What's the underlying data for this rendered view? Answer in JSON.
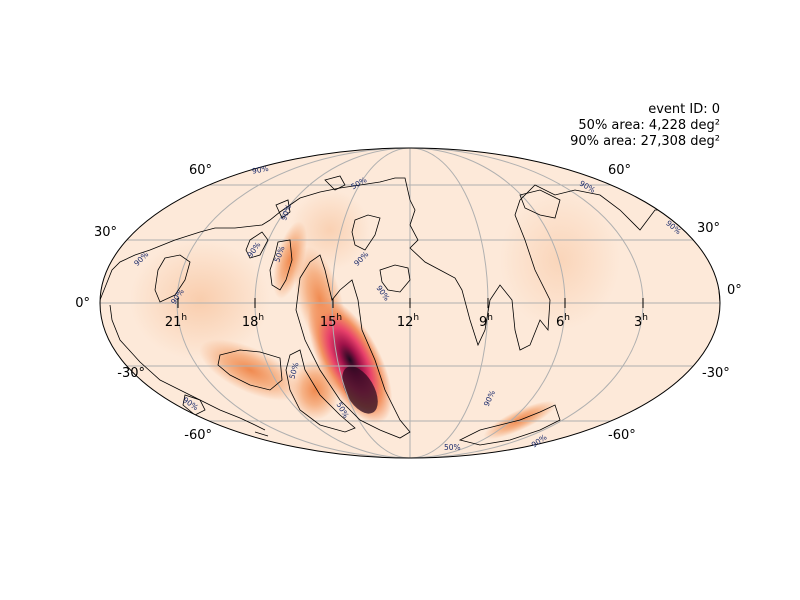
{
  "info": {
    "event_id": "event ID: 0",
    "area50": "50% area: 4,228 deg²",
    "area90": "90% area: 27,308 deg²"
  },
  "projection": "Mollweide (astro, RA increasing to the left)",
  "lat_labels": [
    {
      "name": "lat-label-60-left",
      "text": "60°"
    },
    {
      "name": "lat-label-60-right",
      "text": "60°"
    },
    {
      "name": "lat-label-30-left",
      "text": "30°"
    },
    {
      "name": "lat-label-30-right",
      "text": "30°"
    },
    {
      "name": "lat-label-0-left",
      "text": "0°"
    },
    {
      "name": "lat-label-0-right",
      "text": "0°"
    },
    {
      "name": "lat-label-m30-left",
      "text": "-30°"
    },
    {
      "name": "lat-label-m30-right",
      "text": "-30°"
    },
    {
      "name": "lat-label-m60-left",
      "text": "-60°"
    },
    {
      "name": "lat-label-m60-right",
      "text": "-60°"
    }
  ],
  "ra_labels": [
    {
      "name": "ra-label-21h",
      "hours": "21",
      "unit": "h"
    },
    {
      "name": "ra-label-18h",
      "hours": "18",
      "unit": "h"
    },
    {
      "name": "ra-label-15h",
      "hours": "15",
      "unit": "h"
    },
    {
      "name": "ra-label-12h",
      "hours": "12",
      "unit": "h"
    },
    {
      "name": "ra-label-9h",
      "hours": "9",
      "unit": "h"
    },
    {
      "name": "ra-label-6h",
      "hours": "6",
      "unit": "h"
    },
    {
      "name": "ra-label-3h",
      "hours": "3",
      "unit": "h"
    }
  ],
  "contour_labels": [
    {
      "name": "contour-label-90-a",
      "text": "90%"
    },
    {
      "name": "contour-label-50-a",
      "text": "50%"
    },
    {
      "name": "contour-label-90-b",
      "text": "90%"
    },
    {
      "name": "contour-label-90-c",
      "text": "90%"
    },
    {
      "name": "contour-label-90-d",
      "text": "90%"
    },
    {
      "name": "contour-label-50-b",
      "text": "50%"
    },
    {
      "name": "contour-label-90-e",
      "text": "90%"
    },
    {
      "name": "contour-label-90-f",
      "text": "90%"
    },
    {
      "name": "contour-label-90-g",
      "text": "90%"
    },
    {
      "name": "contour-label-90-h",
      "text": "90%"
    },
    {
      "name": "contour-label-90-i",
      "text": "90%"
    },
    {
      "name": "contour-label-50-c",
      "text": "50%"
    },
    {
      "name": "contour-label-50-d",
      "text": "50%"
    },
    {
      "name": "contour-label-90-j",
      "text": "90%"
    },
    {
      "name": "contour-label-50-e",
      "text": "50%"
    },
    {
      "name": "contour-label-90-k",
      "text": "90%"
    },
    {
      "name": "contour-label-90-l",
      "text": "90%"
    }
  ],
  "colors": {
    "background": "#fde9d9",
    "low": "#fbd3b5",
    "mid": "#f39260",
    "high": "#d8205a",
    "peak": "#1a0a1e",
    "grid": "#b0b0b0",
    "contour": "#000000",
    "contour_label": "#1a2a6c"
  }
}
